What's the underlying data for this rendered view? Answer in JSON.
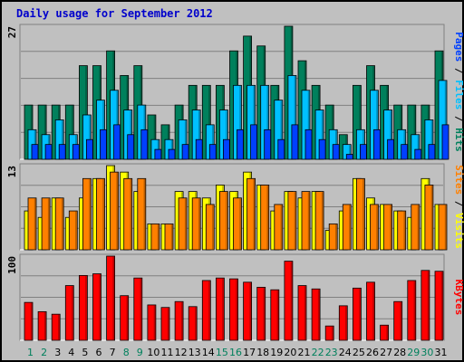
{
  "title": "Daily usage for September 2012",
  "colors": {
    "hits": "#00805c",
    "files": "#00c0ff",
    "pages": "#0040ff",
    "visits": "#ffff00",
    "sites": "#ff8000",
    "kbytes": "#ff0000",
    "title": "#0000cc",
    "panel_bg": "#c0c0c0",
    "day_green": "#00805c",
    "day_black": "#000000"
  },
  "chart_data": [
    {
      "type": "bar",
      "panel": "top",
      "scale_label": "27",
      "ylim": [
        0,
        27
      ],
      "grid": true,
      "categories": [
        "1",
        "2",
        "3",
        "4",
        "5",
        "6",
        "7",
        "8",
        "9",
        "10",
        "11",
        "12",
        "13",
        "14",
        "15",
        "16",
        "17",
        "18",
        "19",
        "20",
        "21",
        "22",
        "23",
        "24",
        "25",
        "26",
        "27",
        "28",
        "29",
        "30",
        "31"
      ],
      "right_label": [
        {
          "text": "Pages",
          "color_key": "pages"
        },
        {
          "text": " / ",
          "color_key": "day_black"
        },
        {
          "text": "Files",
          "color_key": "files"
        },
        {
          "text": " / ",
          "color_key": "day_black"
        },
        {
          "text": "Hits",
          "color_key": "hits"
        }
      ],
      "series": [
        {
          "name": "Hits",
          "color_key": "hits",
          "values": [
            11,
            11,
            11,
            11,
            19,
            19,
            22,
            17,
            19,
            9,
            7,
            11,
            15,
            15,
            15,
            22,
            25,
            23,
            15,
            27,
            20,
            15,
            11,
            5,
            15,
            19,
            15,
            11,
            11,
            11,
            22
          ]
        },
        {
          "name": "Files",
          "color_key": "files",
          "values": [
            6,
            5,
            8,
            5,
            9,
            12,
            14,
            10,
            11,
            4,
            4,
            8,
            10,
            7,
            10,
            15,
            15,
            15,
            12,
            17,
            14,
            10,
            6,
            3,
            6,
            14,
            10,
            6,
            5,
            8,
            16
          ]
        },
        {
          "name": "Pages",
          "color_key": "pages",
          "values": [
            3,
            3,
            3,
            3,
            4,
            6,
            7,
            5,
            6,
            2,
            2,
            3,
            4,
            3,
            4,
            6,
            7,
            6,
            4,
            7,
            6,
            4,
            3,
            1,
            3,
            6,
            4,
            3,
            2,
            3,
            7
          ]
        }
      ]
    },
    {
      "type": "bar",
      "panel": "middle",
      "scale_label": "13",
      "ylim": [
        0,
        13
      ],
      "grid": true,
      "right_label": [
        {
          "text": "Sites",
          "color_key": "sites"
        },
        {
          "text": " / ",
          "color_key": "day_black"
        },
        {
          "text": "Visits",
          "color_key": "visits"
        }
      ],
      "series": [
        {
          "name": "Visits",
          "color_key": "visits",
          "values": [
            6,
            5,
            8,
            5,
            8,
            11,
            13,
            12,
            9,
            4,
            4,
            9,
            9,
            8,
            10,
            9,
            12,
            10,
            6,
            9,
            8,
            9,
            3,
            6,
            11,
            8,
            7,
            6,
            5,
            11,
            7
          ]
        },
        {
          "name": "Sites",
          "color_key": "sites",
          "values": [
            8,
            8,
            8,
            6,
            11,
            11,
            12,
            11,
            11,
            4,
            4,
            8,
            8,
            7,
            9,
            8,
            11,
            10,
            7,
            9,
            9,
            9,
            4,
            7,
            11,
            7,
            7,
            6,
            7,
            10,
            7
          ]
        }
      ]
    },
    {
      "type": "bar",
      "panel": "bottom",
      "scale_label": "100",
      "ylim": [
        0,
        100
      ],
      "grid": true,
      "right_label": [
        {
          "text": "KBytes",
          "color_key": "kbytes"
        }
      ],
      "series": [
        {
          "name": "KBytes",
          "color_key": "kbytes",
          "values": [
            45,
            34,
            31,
            65,
            77,
            79,
            100,
            53,
            74,
            42,
            39,
            46,
            40,
            71,
            74,
            73,
            69,
            63,
            60,
            94,
            65,
            61,
            17,
            41,
            62,
            69,
            18,
            46,
            71,
            83,
            82
          ]
        }
      ]
    }
  ],
  "day_labels": [
    {
      "text": "1",
      "color_key": "day_green"
    },
    {
      "text": "2",
      "color_key": "day_green"
    },
    {
      "text": "3",
      "color_key": "day_black"
    },
    {
      "text": "4",
      "color_key": "day_black"
    },
    {
      "text": "5",
      "color_key": "day_black"
    },
    {
      "text": "6",
      "color_key": "day_black"
    },
    {
      "text": "7",
      "color_key": "day_black"
    },
    {
      "text": "8",
      "color_key": "day_green"
    },
    {
      "text": "9",
      "color_key": "day_green"
    },
    {
      "text": "10",
      "color_key": "day_black"
    },
    {
      "text": "11",
      "color_key": "day_black"
    },
    {
      "text": "12",
      "color_key": "day_black"
    },
    {
      "text": "13",
      "color_key": "day_black"
    },
    {
      "text": "14",
      "color_key": "day_black"
    },
    {
      "text": "15",
      "color_key": "day_green"
    },
    {
      "text": "16",
      "color_key": "day_green"
    },
    {
      "text": "17",
      "color_key": "day_black"
    },
    {
      "text": "18",
      "color_key": "day_black"
    },
    {
      "text": "19",
      "color_key": "day_black"
    },
    {
      "text": "20",
      "color_key": "day_black"
    },
    {
      "text": "21",
      "color_key": "day_black"
    },
    {
      "text": "22",
      "color_key": "day_green"
    },
    {
      "text": "23",
      "color_key": "day_green"
    },
    {
      "text": "24",
      "color_key": "day_black"
    },
    {
      "text": "25",
      "color_key": "day_black"
    },
    {
      "text": "26",
      "color_key": "day_black"
    },
    {
      "text": "27",
      "color_key": "day_black"
    },
    {
      "text": "28",
      "color_key": "day_black"
    },
    {
      "text": "29",
      "color_key": "day_green"
    },
    {
      "text": "30",
      "color_key": "day_green"
    },
    {
      "text": "31",
      "color_key": "day_black"
    }
  ]
}
